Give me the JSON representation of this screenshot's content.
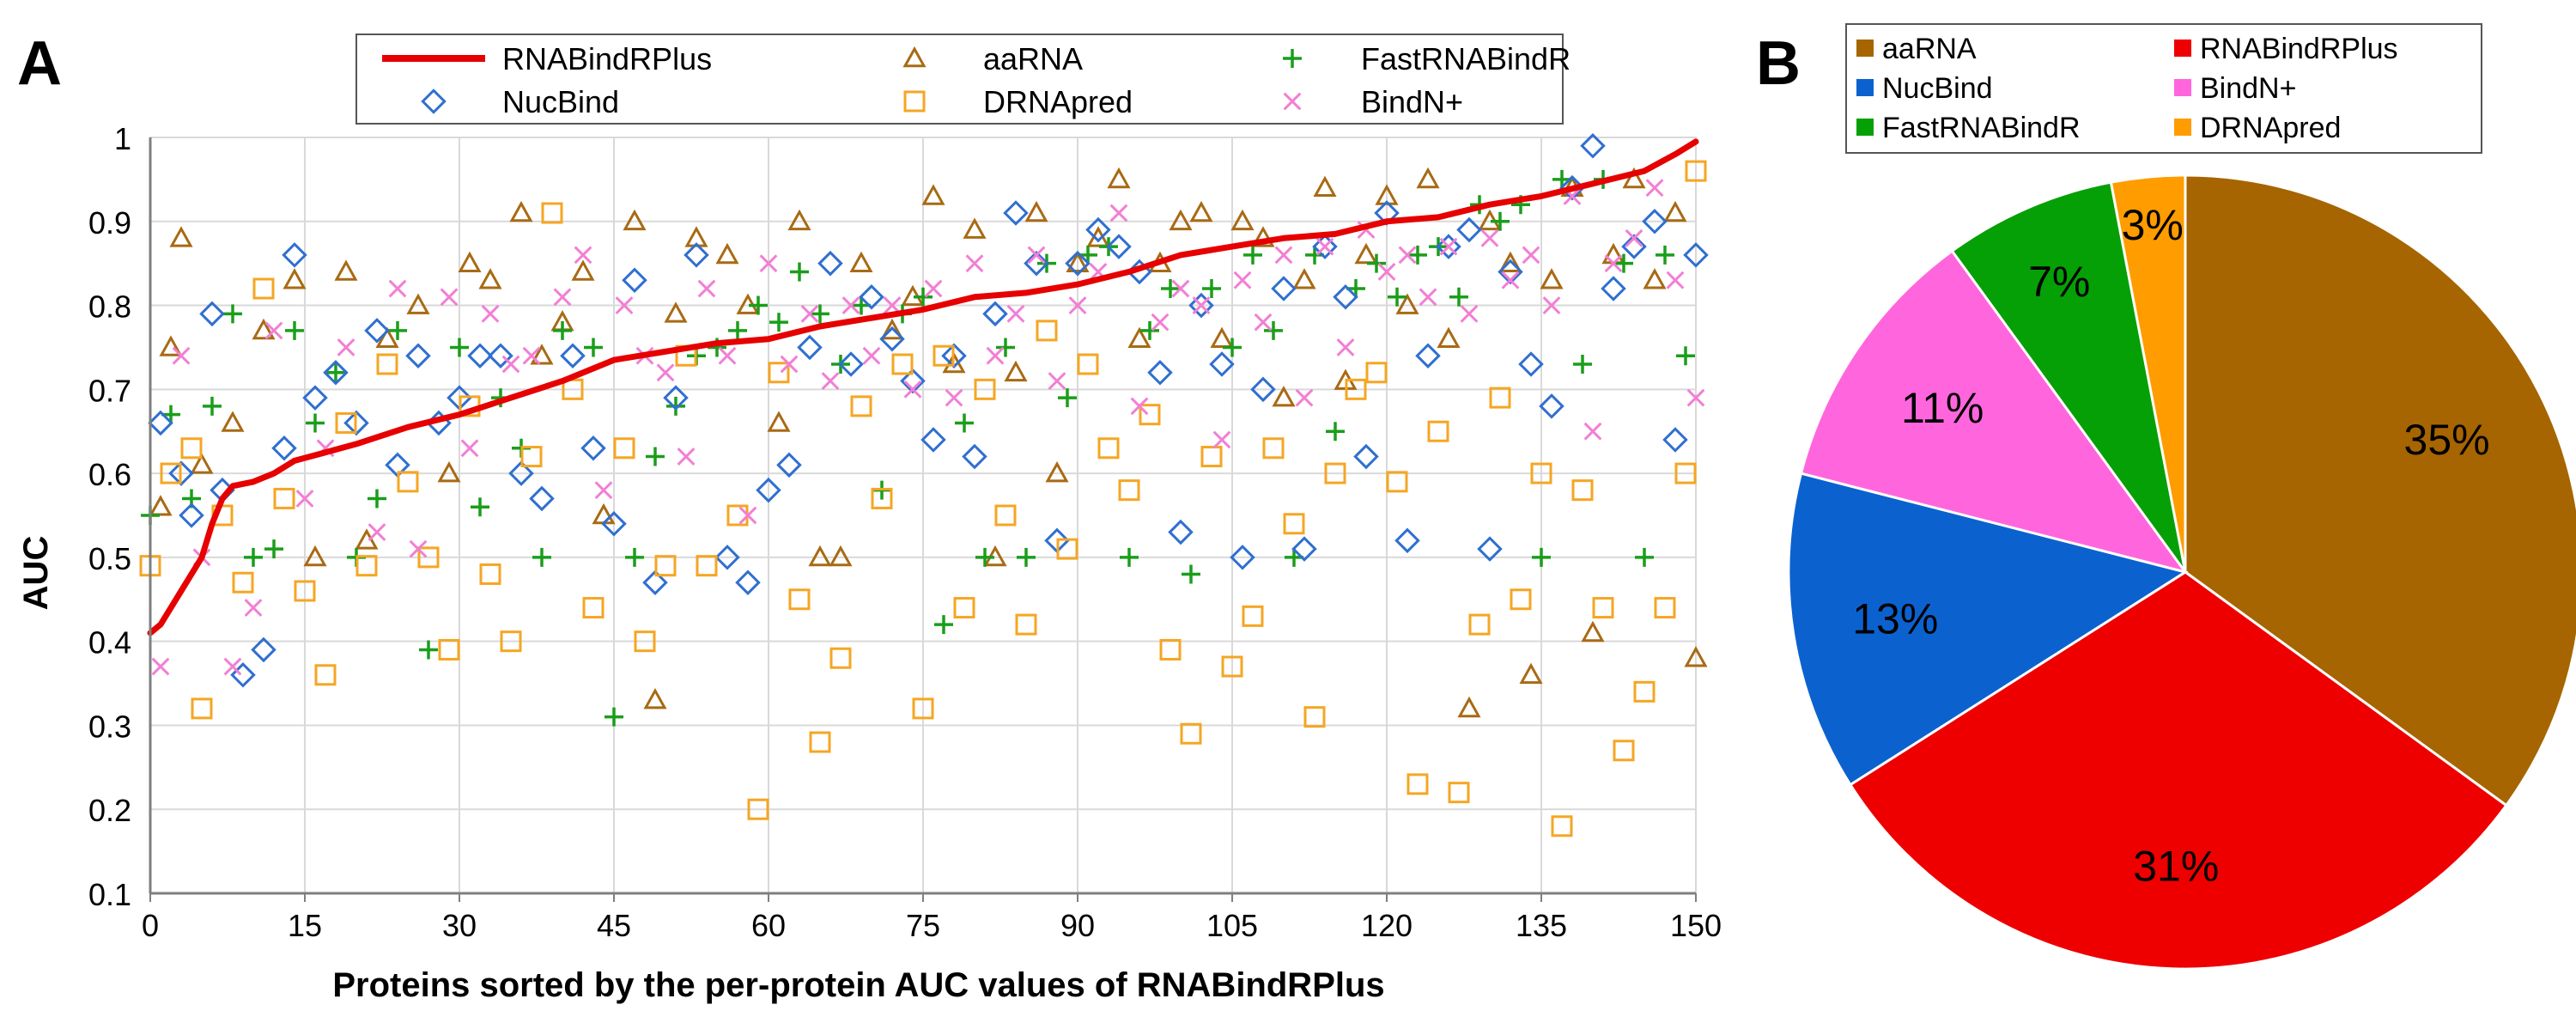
{
  "panel_labels": {
    "a": "A",
    "b": "B"
  },
  "colors": {
    "rnabindrplus": "#e60000",
    "aarna": "#a86a14",
    "nucbind": "#2f6fd0",
    "drnapred": "#f5a623",
    "fastrnabindr": "#1a9e1a",
    "bindn": "#f27fd4",
    "pie_aarna": "#a66500",
    "pie_rnabindrplus": "#ee0000",
    "pie_nucbind": "#0b62cf",
    "pie_bindn": "#ff66dd",
    "pie_fastrnabindr": "#05a005",
    "pie_drnapred": "#ff9c00"
  },
  "chart_data": [
    {
      "type": "scatter",
      "title": "",
      "xlabel": "Proteins sorted by the per-protein AUC values of RNABindRPlus",
      "ylabel": "AUC",
      "xlim": [
        0,
        150
      ],
      "ylim": [
        0.1,
        1
      ],
      "xticks": [
        0,
        15,
        30,
        45,
        60,
        75,
        90,
        105,
        120,
        135,
        150
      ],
      "yticks": [
        0.1,
        0.2,
        0.3,
        0.4,
        0.5,
        0.6,
        0.7,
        0.8,
        0.9,
        1
      ],
      "ytick_labels": [
        "0.1",
        "0.2",
        "0.3",
        "0.4",
        "0.5",
        "0.6",
        "0.7",
        "0.8",
        "0.9",
        "1"
      ],
      "legend": [
        {
          "name": "RNABindRPlus",
          "marker": "line"
        },
        {
          "name": "aaRNA",
          "marker": "triangle"
        },
        {
          "name": "FastRNABindR",
          "marker": "plus"
        },
        {
          "name": "NucBind",
          "marker": "diamond"
        },
        {
          "name": "DRNApred",
          "marker": "square"
        },
        {
          "name": "BindN+",
          "marker": "cross"
        }
      ],
      "series": [
        {
          "name": "RNABindRPlus",
          "kind": "line",
          "x": [
            0,
            1,
            2,
            3,
            4,
            5,
            6,
            7,
            8,
            10,
            12,
            14,
            17,
            20,
            25,
            30,
            35,
            40,
            45,
            50,
            55,
            60,
            65,
            70,
            75,
            80,
            85,
            90,
            95,
            100,
            105,
            110,
            115,
            120,
            125,
            130,
            135,
            140,
            145,
            148,
            150
          ],
          "y": [
            0.41,
            0.42,
            0.44,
            0.46,
            0.48,
            0.5,
            0.54,
            0.57,
            0.585,
            0.59,
            0.6,
            0.615,
            0.625,
            0.635,
            0.655,
            0.67,
            0.69,
            0.71,
            0.735,
            0.745,
            0.755,
            0.76,
            0.775,
            0.785,
            0.795,
            0.81,
            0.815,
            0.825,
            0.84,
            0.86,
            0.87,
            0.88,
            0.885,
            0.9,
            0.905,
            0.92,
            0.93,
            0.945,
            0.96,
            0.98,
            0.995
          ]
        },
        {
          "name": "aaRNA",
          "kind": "triangle",
          "x": [
            1,
            2,
            3,
            5,
            8,
            11,
            14,
            16,
            19,
            21,
            23,
            26,
            29,
            31,
            33,
            36,
            38,
            40,
            42,
            44,
            47,
            49,
            51,
            53,
            56,
            58,
            61,
            63,
            65,
            67,
            69,
            72,
            74,
            76,
            78,
            80,
            82,
            84,
            86,
            88,
            90,
            92,
            94,
            96,
            98,
            100,
            102,
            104,
            106,
            108,
            110,
            112,
            114,
            116,
            118,
            120,
            122,
            124,
            126,
            128,
            130,
            132,
            134,
            136,
            138,
            140,
            142,
            144,
            146,
            148,
            150
          ],
          "y": [
            0.56,
            0.75,
            0.88,
            0.61,
            0.66,
            0.77,
            0.83,
            0.5,
            0.84,
            0.52,
            0.76,
            0.8,
            0.6,
            0.85,
            0.83,
            0.91,
            0.74,
            0.78,
            0.84,
            0.55,
            0.9,
            0.33,
            0.79,
            0.88,
            0.86,
            0.8,
            0.66,
            0.9,
            0.5,
            0.5,
            0.85,
            0.77,
            0.81,
            0.93,
            0.73,
            0.89,
            0.5,
            0.72,
            0.91,
            0.6,
            0.85,
            0.88,
            0.95,
            0.76,
            0.85,
            0.9,
            0.91,
            0.76,
            0.9,
            0.88,
            0.69,
            0.83,
            0.94,
            0.71,
            0.86,
            0.93,
            0.8,
            0.95,
            0.76,
            0.32,
            0.9,
            0.85,
            0.36,
            0.83,
            0.94,
            0.41,
            0.86,
            0.95,
            0.83,
            0.91,
            0.38
          ]
        },
        {
          "name": "FastRNABindR",
          "kind": "plus",
          "x": [
            0,
            2,
            4,
            6,
            8,
            10,
            12,
            14,
            16,
            18,
            20,
            22,
            24,
            27,
            30,
            32,
            34,
            36,
            38,
            40,
            43,
            45,
            47,
            49,
            51,
            53,
            55,
            57,
            59,
            61,
            63,
            65,
            67,
            69,
            71,
            73,
            75,
            77,
            79,
            81,
            83,
            85,
            87,
            89,
            91,
            93,
            95,
            97,
            99,
            101,
            103,
            105,
            107,
            109,
            111,
            113,
            115,
            117,
            119,
            121,
            123,
            125,
            127,
            129,
            131,
            133,
            135,
            137,
            139,
            141,
            143,
            145,
            147,
            149
          ],
          "y": [
            0.55,
            0.67,
            0.57,
            0.68,
            0.79,
            0.5,
            0.51,
            0.77,
            0.66,
            0.72,
            0.5,
            0.57,
            0.77,
            0.39,
            0.75,
            0.56,
            0.69,
            0.63,
            0.5,
            0.77,
            0.75,
            0.31,
            0.5,
            0.62,
            0.68,
            0.74,
            0.75,
            0.77,
            0.8,
            0.78,
            0.84,
            0.79,
            0.73,
            0.8,
            0.58,
            0.79,
            0.81,
            0.42,
            0.66,
            0.5,
            0.75,
            0.5,
            0.85,
            0.69,
            0.86,
            0.87,
            0.5,
            0.77,
            0.82,
            0.48,
            0.82,
            0.75,
            0.86,
            0.77,
            0.5,
            0.86,
            0.65,
            0.82,
            0.85,
            0.81,
            0.86,
            0.87,
            0.81,
            0.92,
            0.9,
            0.92,
            0.5,
            0.95,
            0.73,
            0.95,
            0.85,
            0.5,
            0.86,
            0.74
          ]
        },
        {
          "name": "NucBind",
          "kind": "diamond",
          "x": [
            1,
            3,
            4,
            6,
            7,
            9,
            11,
            13,
            14,
            16,
            18,
            20,
            22,
            24,
            26,
            28,
            30,
            32,
            34,
            36,
            38,
            41,
            43,
            45,
            47,
            49,
            51,
            53,
            56,
            58,
            60,
            62,
            64,
            66,
            68,
            70,
            72,
            74,
            76,
            78,
            80,
            82,
            84,
            86,
            88,
            90,
            92,
            94,
            96,
            98,
            100,
            102,
            104,
            106,
            108,
            110,
            112,
            114,
            116,
            118,
            120,
            122,
            124,
            126,
            128,
            130,
            132,
            134,
            136,
            138,
            140,
            142,
            144,
            146,
            148,
            150
          ],
          "y": [
            0.66,
            0.6,
            0.55,
            0.79,
            0.58,
            0.36,
            0.39,
            0.63,
            0.86,
            0.69,
            0.72,
            0.66,
            0.77,
            0.61,
            0.74,
            0.66,
            0.69,
            0.74,
            0.74,
            0.6,
            0.57,
            0.74,
            0.63,
            0.54,
            0.83,
            0.47,
            0.69,
            0.86,
            0.5,
            0.47,
            0.58,
            0.61,
            0.75,
            0.85,
            0.73,
            0.81,
            0.76,
            0.71,
            0.64,
            0.74,
            0.62,
            0.79,
            0.91,
            0.85,
            0.52,
            0.85,
            0.89,
            0.87,
            0.84,
            0.72,
            0.53,
            0.8,
            0.73,
            0.5,
            0.7,
            0.82,
            0.51,
            0.87,
            0.81,
            0.62,
            0.91,
            0.52,
            0.74,
            0.87,
            0.89,
            0.51,
            0.84,
            0.73,
            0.68,
            0.94,
            0.99,
            0.82,
            0.87,
            0.9,
            0.64,
            0.86
          ]
        },
        {
          "name": "DRNApred",
          "kind": "square",
          "x": [
            0,
            2,
            4,
            5,
            7,
            9,
            11,
            13,
            15,
            17,
            19,
            21,
            23,
            25,
            27,
            29,
            31,
            33,
            35,
            37,
            39,
            41,
            43,
            46,
            48,
            50,
            52,
            54,
            57,
            59,
            61,
            63,
            65,
            67,
            69,
            71,
            73,
            75,
            77,
            79,
            81,
            83,
            85,
            87,
            89,
            91,
            93,
            95,
            97,
            99,
            101,
            103,
            105,
            107,
            109,
            111,
            113,
            115,
            117,
            119,
            121,
            123,
            125,
            127,
            129,
            131,
            133,
            135,
            137,
            139,
            141,
            143,
            145,
            147,
            149,
            150
          ],
          "y": [
            0.49,
            0.6,
            0.63,
            0.32,
            0.55,
            0.47,
            0.82,
            0.57,
            0.46,
            0.36,
            0.66,
            0.49,
            0.73,
            0.59,
            0.5,
            0.39,
            0.68,
            0.48,
            0.4,
            0.62,
            0.91,
            0.7,
            0.44,
            0.63,
            0.4,
            0.49,
            0.74,
            0.49,
            0.55,
            0.2,
            0.72,
            0.45,
            0.28,
            0.38,
            0.68,
            0.57,
            0.73,
            0.32,
            0.74,
            0.44,
            0.7,
            0.55,
            0.42,
            0.77,
            0.51,
            0.73,
            0.63,
            0.58,
            0.67,
            0.39,
            0.29,
            0.62,
            0.37,
            0.43,
            0.63,
            0.54,
            0.31,
            0.6,
            0.7,
            0.72,
            0.59,
            0.23,
            0.65,
            0.22,
            0.42,
            0.69,
            0.45,
            0.6,
            0.18,
            0.58,
            0.44,
            0.27,
            0.34,
            0.44,
            0.6,
            0.96
          ]
        },
        {
          "name": "BindN+",
          "kind": "cross",
          "x": [
            1,
            3,
            5,
            8,
            10,
            12,
            15,
            17,
            19,
            22,
            24,
            26,
            29,
            31,
            33,
            35,
            37,
            40,
            42,
            44,
            46,
            48,
            50,
            52,
            54,
            56,
            58,
            60,
            62,
            64,
            66,
            68,
            70,
            72,
            74,
            76,
            78,
            80,
            82,
            84,
            86,
            88,
            90,
            92,
            94,
            96,
            98,
            100,
            102,
            104,
            106,
            108,
            110,
            112,
            114,
            116,
            118,
            120,
            122,
            124,
            126,
            128,
            130,
            132,
            134,
            136,
            138,
            140,
            142,
            144,
            146,
            148,
            150
          ],
          "y": [
            0.37,
            0.74,
            0.5,
            0.37,
            0.44,
            0.77,
            0.57,
            0.63,
            0.75,
            0.53,
            0.82,
            0.51,
            0.81,
            0.63,
            0.79,
            0.73,
            0.74,
            0.81,
            0.86,
            0.58,
            0.8,
            0.74,
            0.72,
            0.62,
            0.82,
            0.74,
            0.55,
            0.85,
            0.73,
            0.79,
            0.71,
            0.8,
            0.74,
            0.8,
            0.7,
            0.82,
            0.69,
            0.85,
            0.74,
            0.79,
            0.86,
            0.71,
            0.8,
            0.84,
            0.91,
            0.68,
            0.78,
            0.82,
            0.8,
            0.64,
            0.83,
            0.78,
            0.86,
            0.69,
            0.87,
            0.75,
            0.89,
            0.84,
            0.86,
            0.81,
            0.87,
            0.79,
            0.88,
            0.83,
            0.86,
            0.8,
            0.93,
            0.65,
            0.85,
            0.88,
            0.94,
            0.83,
            0.69
          ]
        }
      ]
    },
    {
      "type": "pie",
      "title": "",
      "slices": [
        {
          "name": "aaRNA",
          "value": 35,
          "label": "35%",
          "color_key": "pie_aarna"
        },
        {
          "name": "RNABindRPlus",
          "value": 31,
          "label": "31%",
          "color_key": "pie_rnabindrplus"
        },
        {
          "name": "NucBind",
          "value": 13,
          "label": "13%",
          "color_key": "pie_nucbind"
        },
        {
          "name": "BindN+",
          "value": 11,
          "label": "11%",
          "color_key": "pie_bindn"
        },
        {
          "name": "FastRNABindR",
          "value": 7,
          "label": "7%",
          "color_key": "pie_fastrnabindr"
        },
        {
          "name": "DRNApred",
          "value": 3,
          "label": "3%",
          "color_key": "pie_drnapred"
        }
      ],
      "legend": [
        "aaRNA",
        "RNABindRPlus",
        "NucBind",
        "BindN+",
        "FastRNABindR",
        "DRNApred"
      ]
    }
  ]
}
